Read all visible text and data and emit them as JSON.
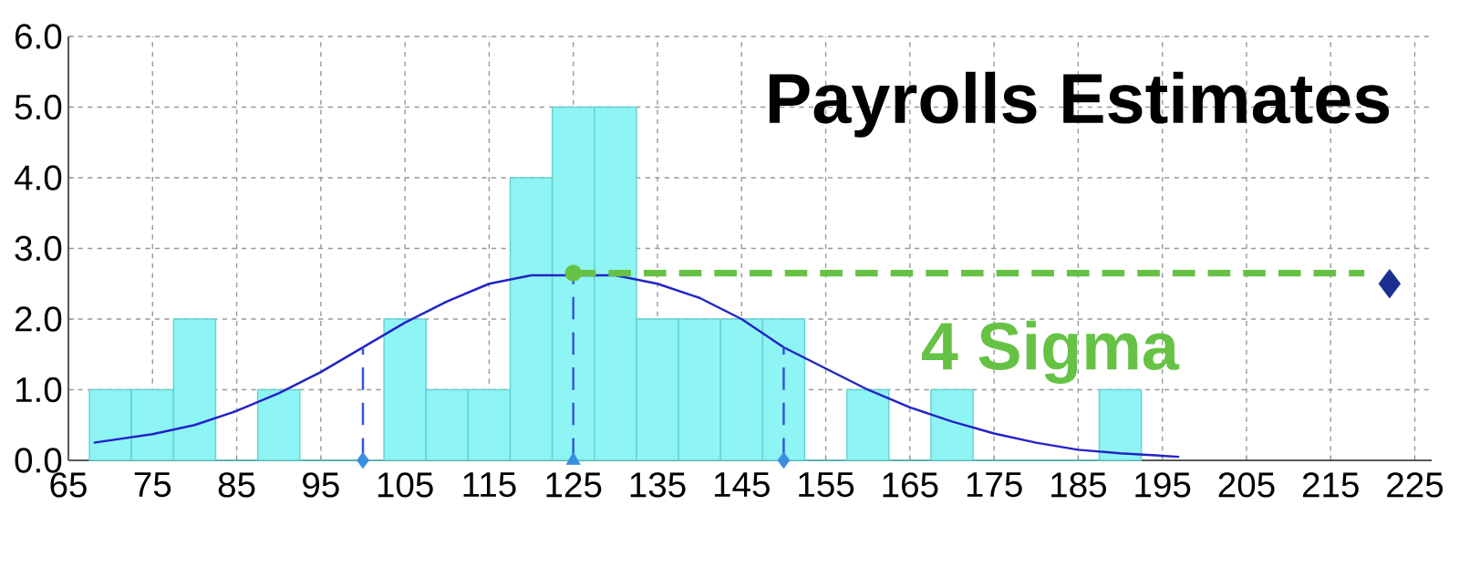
{
  "chart_data": {
    "type": "histogram",
    "title": "Payrolls Estimates",
    "bins": [
      67.5,
      72.5,
      77.5,
      82.5,
      87.5,
      92.5,
      97.5,
      102.5,
      107.5,
      112.5,
      117.5,
      122.5,
      127.5,
      132.5,
      137.5,
      142.5,
      147.5,
      152.5,
      157.5,
      162.5,
      167.5,
      172.5,
      177.5,
      182.5,
      187.5,
      192.5
    ],
    "values": [
      1,
      1,
      2,
      0,
      1,
      0,
      0,
      2,
      1,
      1,
      4,
      5,
      5,
      2,
      2,
      2,
      2,
      0,
      1,
      0,
      1,
      0,
      0,
      0,
      1
    ],
    "color": "#8ff4f4",
    "series": [
      {
        "type": "line",
        "color": "#2323c8",
        "x": [
          68,
          75,
          80,
          85,
          90,
          95,
          100,
          105,
          110,
          115,
          120,
          130,
          135,
          140,
          145,
          150,
          155,
          160,
          165,
          170,
          175,
          180,
          185,
          190,
          197
        ],
        "values": [
          0.25,
          0.37,
          0.5,
          0.7,
          0.95,
          1.25,
          1.6,
          1.95,
          2.25,
          2.5,
          2.62,
          2.62,
          2.5,
          2.3,
          2.0,
          1.6,
          1.3,
          1.0,
          0.75,
          0.55,
          0.38,
          0.25,
          0.15,
          0.1,
          0.05
        ]
      },
      {
        "type": "line",
        "color": "#3355dd",
        "line_style": "dashed",
        "x": [
          100,
          100
        ],
        "values": [
          0,
          1.6
        ]
      },
      {
        "type": "line",
        "color": "#3355dd",
        "line_style": "dashed",
        "x": [
          125,
          125
        ],
        "values": [
          0,
          2.65
        ]
      },
      {
        "type": "line",
        "color": "#3355dd",
        "line_style": "dashed",
        "x": [
          150,
          150
        ],
        "values": [
          0,
          1.6
        ]
      },
      {
        "type": "scatter",
        "color": "#3a8ee0",
        "marker": "diamond",
        "x": [
          100,
          150
        ],
        "values": [
          0,
          0
        ]
      },
      {
        "type": "scatter",
        "color": "#3a8ee0",
        "marker": "triangle",
        "x": [
          125
        ],
        "values": [
          0
        ]
      },
      {
        "type": "line",
        "color": "#66c244",
        "line_style": "dashed",
        "x": [
          125,
          219
        ],
        "values": [
          2.65,
          2.65
        ]
      },
      {
        "type": "scatter",
        "color": "#66c244",
        "marker": "circle",
        "x": [
          125
        ],
        "values": [
          2.65
        ]
      },
      {
        "type": "scatter",
        "color": "#1a2f8f",
        "marker": "diamond",
        "x": [
          222
        ],
        "values": [
          2.5
        ]
      }
    ],
    "annotations": [
      "4 Sigma"
    ],
    "xlim": [
      65,
      227
    ],
    "xticks": [
      65,
      75,
      85,
      95,
      105,
      115,
      125,
      135,
      145,
      155,
      165,
      175,
      185,
      195,
      205,
      215,
      225
    ],
    "ylim": [
      0,
      6
    ],
    "yticks": [
      {
        "value": 0,
        "label": "0.0"
      },
      {
        "value": 1,
        "label": "1.0"
      },
      {
        "value": 2,
        "label": "2.0"
      },
      {
        "value": 3,
        "label": "3.0"
      },
      {
        "value": 4,
        "label": "4.0"
      },
      {
        "value": 5,
        "label": "5.0"
      },
      {
        "value": 6,
        "label": "6.0"
      }
    ],
    "grid": true
  }
}
